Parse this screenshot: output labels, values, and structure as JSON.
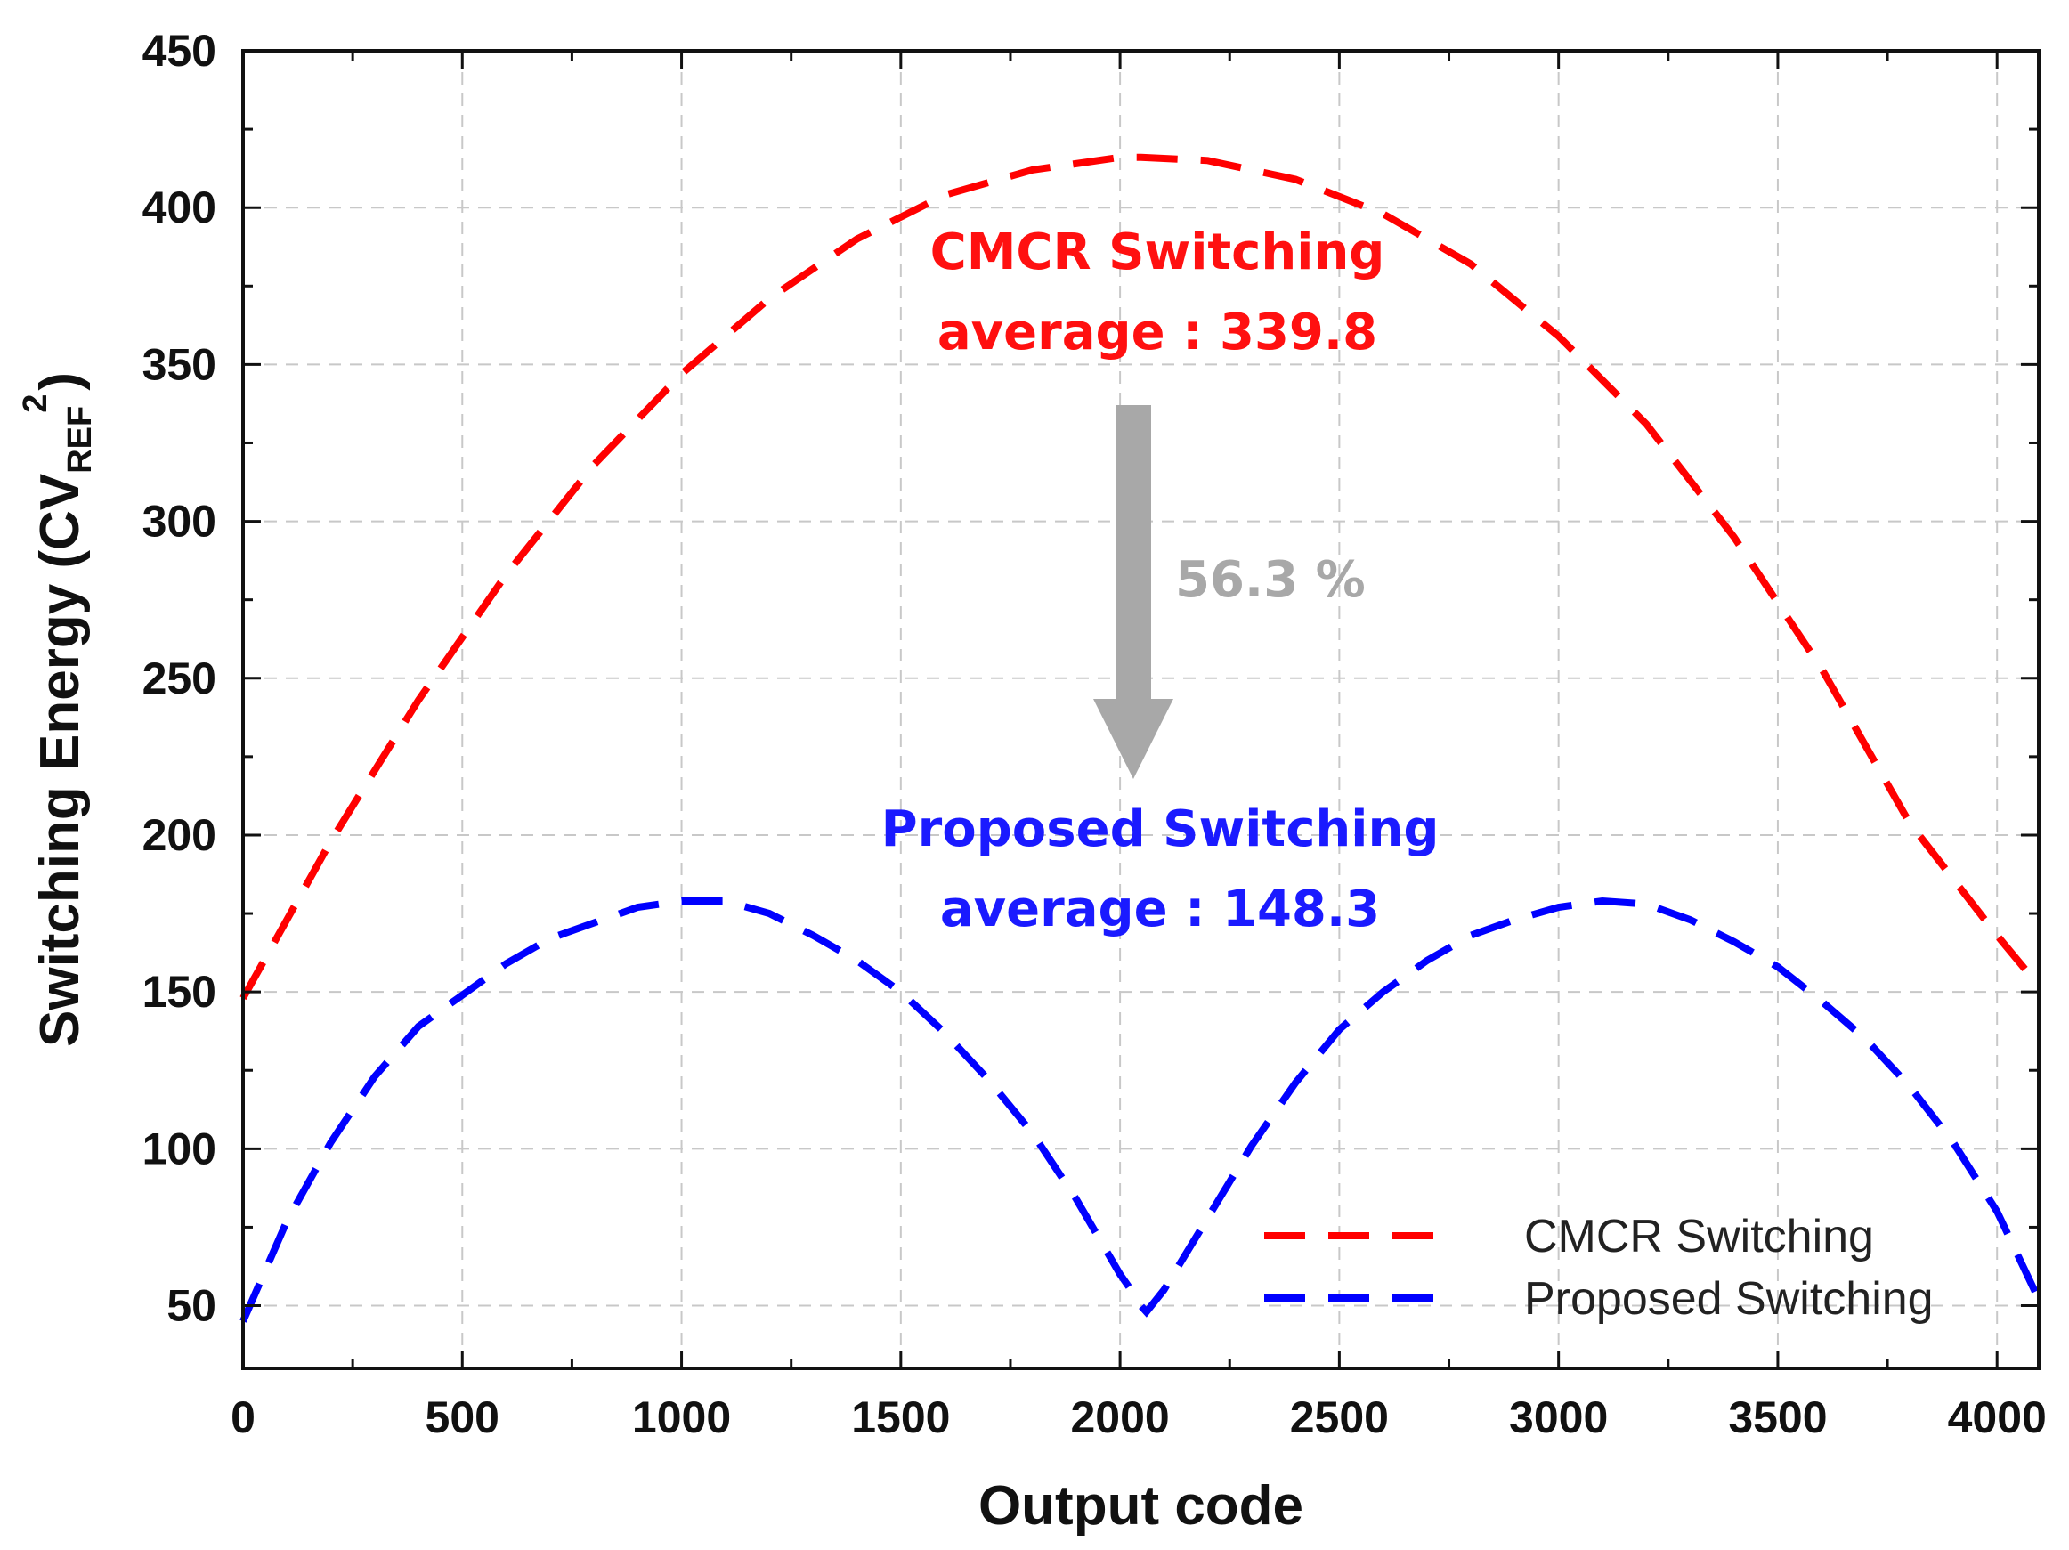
{
  "chart_data": {
    "type": "line",
    "xlabel": "Output code",
    "ylabel_main": "Switching Energy (CV",
    "ylabel_sub": "REF",
    "ylabel_sup": "2",
    "ylabel_close": ")",
    "xlim": [
      0,
      4095
    ],
    "ylim": [
      30,
      450
    ],
    "xticks": [
      0,
      500,
      1000,
      1500,
      2000,
      2500,
      3000,
      3500,
      4000
    ],
    "yticks": [
      50,
      100,
      150,
      200,
      250,
      300,
      350,
      400,
      450
    ],
    "grid": true,
    "legend_position": "bottom-right",
    "series": [
      {
        "name": "CMCR Switching",
        "color": "#ff0000",
        "x": [
          0,
          200,
          400,
          600,
          800,
          1000,
          1200,
          1400,
          1600,
          1800,
          2000,
          2048,
          2200,
          2400,
          2600,
          2800,
          3000,
          3200,
          3400,
          3600,
          3800,
          4000,
          4095
        ],
        "y": [
          148,
          198,
          243,
          283,
          318,
          347,
          371,
          390,
          404,
          412,
          416,
          416,
          415,
          409,
          398,
          382,
          359,
          331,
          295,
          253,
          204,
          168,
          152
        ]
      },
      {
        "name": "Proposed Switching",
        "color": "#0000ff",
        "x": [
          0,
          100,
          200,
          300,
          400,
          500,
          600,
          700,
          800,
          900,
          1000,
          1100,
          1200,
          1300,
          1400,
          1500,
          1600,
          1700,
          1800,
          1900,
          2000,
          2040,
          2047,
          2060,
          2100,
          2200,
          2300,
          2400,
          2500,
          2600,
          2700,
          2800,
          2900,
          3000,
          3100,
          3200,
          3300,
          3400,
          3500,
          3600,
          3700,
          3800,
          3900,
          4000,
          4095
        ],
        "y": [
          45,
          77,
          102,
          123,
          139,
          149,
          159,
          167,
          172,
          177,
          179,
          179,
          175,
          168,
          160,
          150,
          137,
          122,
          105,
          84,
          60,
          52,
          50,
          48,
          55,
          78,
          101,
          121,
          138,
          150,
          160,
          168,
          173,
          177,
          179,
          178,
          173,
          166,
          158,
          147,
          135,
          120,
          102,
          80,
          52
        ]
      }
    ],
    "annotations": {
      "cmcr_title": "CMCR Switching",
      "cmcr_average": "average : 339.8",
      "proposed_title": "Proposed Switching",
      "proposed_average": "average : 148.3",
      "reduction": "56.3 %",
      "cmcr_color": "#ff1010",
      "proposed_color": "#1a1aff",
      "reduction_color": "#a8a8a8"
    }
  }
}
